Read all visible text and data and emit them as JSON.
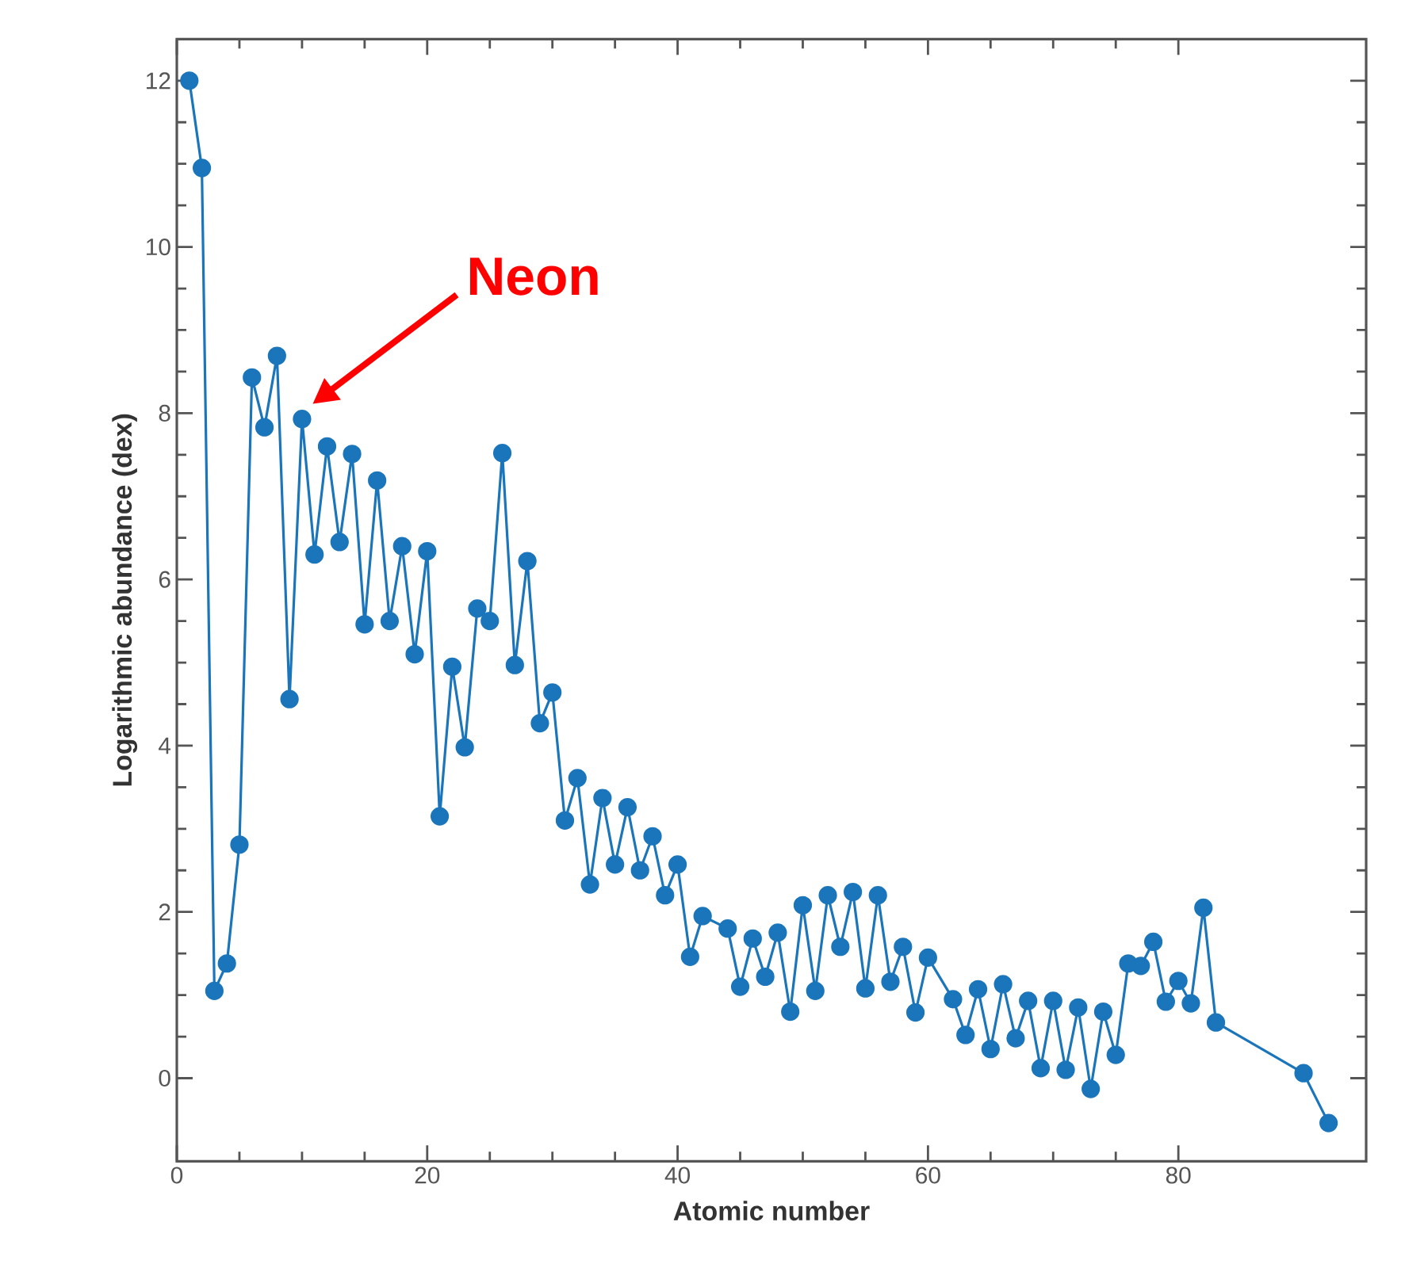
{
  "chart_data": {
    "type": "line",
    "xlabel": "Atomic number",
    "ylabel": "Logarithmic abundance (dex)",
    "x": [
      1,
      2,
      3,
      4,
      5,
      6,
      7,
      8,
      9,
      10,
      11,
      12,
      13,
      14,
      15,
      16,
      17,
      18,
      19,
      20,
      21,
      22,
      23,
      24,
      25,
      26,
      27,
      28,
      29,
      30,
      31,
      32,
      33,
      34,
      35,
      36,
      37,
      38,
      39,
      40,
      41,
      42,
      44,
      45,
      46,
      47,
      48,
      49,
      50,
      51,
      52,
      53,
      54,
      55,
      56,
      57,
      58,
      59,
      60,
      62,
      63,
      64,
      65,
      66,
      67,
      68,
      69,
      70,
      71,
      72,
      73,
      74,
      75,
      76,
      77,
      78,
      79,
      80,
      81,
      82,
      83,
      90,
      92
    ],
    "values": [
      12.0,
      10.95,
      1.05,
      1.38,
      2.81,
      8.43,
      7.83,
      8.69,
      4.56,
      7.93,
      6.3,
      7.6,
      6.45,
      7.51,
      5.46,
      7.19,
      5.5,
      6.4,
      5.1,
      6.34,
      3.15,
      4.95,
      3.98,
      5.65,
      5.5,
      7.52,
      4.97,
      6.22,
      4.27,
      4.64,
      3.1,
      3.61,
      2.33,
      3.37,
      2.57,
      3.26,
      2.5,
      2.91,
      2.2,
      2.57,
      1.46,
      1.95,
      1.8,
      1.1,
      1.68,
      1.22,
      1.75,
      0.8,
      2.08,
      1.05,
      2.2,
      1.58,
      2.24,
      1.08,
      2.2,
      1.16,
      1.58,
      0.79,
      1.45,
      0.95,
      0.52,
      1.07,
      0.35,
      1.13,
      0.48,
      0.93,
      0.12,
      0.93,
      0.1,
      0.85,
      -0.13,
      0.8,
      0.28,
      1.38,
      1.35,
      1.64,
      0.92,
      1.17,
      0.9,
      2.05,
      0.67,
      0.06,
      -0.54
    ],
    "color": "#1a75bb",
    "marker": "circle",
    "line_style": "solid",
    "xlim": [
      0,
      95
    ],
    "ylim": [
      -1,
      12.5
    ],
    "xticks": [
      0,
      20,
      40,
      60,
      80
    ],
    "yticks": [
      0,
      2,
      4,
      6,
      8,
      10,
      12
    ],
    "grid": false,
    "annotations": [
      "Neon"
    ]
  }
}
